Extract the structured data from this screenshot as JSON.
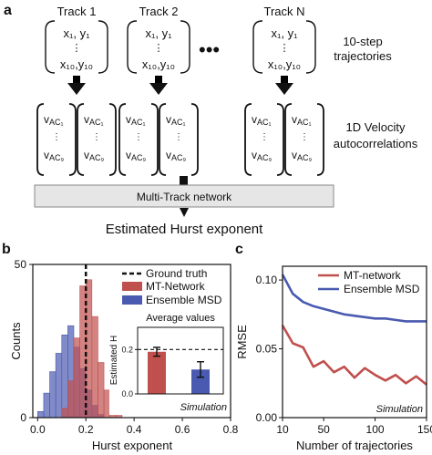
{
  "panel_a": {
    "label": "a",
    "tracks": [
      {
        "title": "Track 1",
        "top": "x₁, y₁",
        "bottom": "x₁₀,y₁₀"
      },
      {
        "title": "Track 2",
        "top": "x₁, y₁",
        "bottom": "x₁₀,y₁₀"
      },
      {
        "title": "Track N",
        "top": "x₁, y₁",
        "bottom": "x₁₀,y₁₀"
      }
    ],
    "dots": "•••",
    "vdots": "⋮",
    "traj_label": [
      "10-step",
      "trajectories"
    ],
    "vel_label": [
      "1D Velocity",
      "autocorrelations"
    ],
    "vac_top": "v",
    "vac_sub_top": "AC₁",
    "vac_sub_bottom": "AC₉",
    "network_label": "Multi-Track network",
    "output_label": "Estimated Hurst exponent"
  },
  "panel_b": {
    "label": "b",
    "ylabel": "Counts",
    "xlabel": "Hurst exponent",
    "xticks": [
      "0.0",
      "0.2",
      "0.4",
      "0.6",
      "0.8"
    ],
    "yticks": [
      "0",
      "50"
    ],
    "legend": [
      "Ground truth",
      "MT-Network",
      "Ensemble MSD"
    ],
    "inset_title": "Average values",
    "inset_ylabel": "Estimated H",
    "inset_yticks": [
      "0.0",
      "0.2"
    ],
    "simulation_label": "Simulation",
    "colors": {
      "mt": "#c0504d",
      "msd": "#4a5ab0"
    }
  },
  "panel_c": {
    "label": "c",
    "ylabel": "RMSE",
    "xlabel": "Number of trajectories",
    "xticks": [
      "10",
      "50",
      "100",
      "150"
    ],
    "yticks": [
      "0.00",
      "0.05",
      "0.10"
    ],
    "legend": [
      "MT-network",
      "Ensemble MSD"
    ],
    "simulation_label": "Simulation"
  },
  "chart_data": [
    {
      "type": "bar",
      "xlabel": "Hurst exponent",
      "ylabel": "Counts",
      "xlim": [
        -0.02,
        0.8
      ],
      "ylim": [
        0,
        50
      ],
      "ground_truth": 0.2,
      "series": [
        {
          "name": "MT-Network",
          "bin_width": 0.025,
          "x": [
            0.1,
            0.125,
            0.15,
            0.175,
            0.2,
            0.225,
            0.25,
            0.275,
            0.3,
            0.325
          ],
          "values": [
            3,
            12,
            26,
            43,
            45,
            33,
            18,
            9,
            4,
            1
          ]
        },
        {
          "name": "Ensemble MSD",
          "bin_width": 0.025,
          "x": [
            0.0,
            0.025,
            0.05,
            0.075,
            0.1,
            0.125,
            0.15,
            0.175,
            0.2,
            0.225,
            0.25
          ],
          "values": [
            2,
            8,
            15,
            21,
            27,
            30,
            23,
            16,
            9,
            4,
            1
          ]
        }
      ],
      "inset": {
        "type": "bar",
        "title": "Average values",
        "ylabel": "Estimated H",
        "ylim": [
          0,
          0.3
        ],
        "reference": 0.2,
        "series": [
          {
            "name": "MT-Network",
            "value": 0.19,
            "error": 0.02
          },
          {
            "name": "Ensemble MSD",
            "value": 0.11,
            "error": 0.035
          }
        ]
      }
    },
    {
      "type": "line",
      "xlabel": "Number of trajectories",
      "ylabel": "RMSE",
      "xlim": [
        10,
        150
      ],
      "ylim": [
        0,
        0.11
      ],
      "series": [
        {
          "name": "MT-network",
          "x": [
            10,
            20,
            30,
            40,
            50,
            60,
            70,
            80,
            90,
            100,
            110,
            120,
            130,
            140,
            150
          ],
          "values": [
            0.067,
            0.054,
            0.051,
            0.037,
            0.041,
            0.033,
            0.037,
            0.029,
            0.036,
            0.031,
            0.027,
            0.031,
            0.025,
            0.03,
            0.024
          ]
        },
        {
          "name": "Ensemble MSD",
          "x": [
            10,
            20,
            30,
            40,
            50,
            60,
            70,
            80,
            90,
            100,
            110,
            120,
            130,
            140,
            150
          ],
          "values": [
            0.104,
            0.09,
            0.084,
            0.081,
            0.079,
            0.077,
            0.075,
            0.074,
            0.073,
            0.072,
            0.072,
            0.071,
            0.07,
            0.07,
            0.07
          ]
        }
      ]
    }
  ]
}
